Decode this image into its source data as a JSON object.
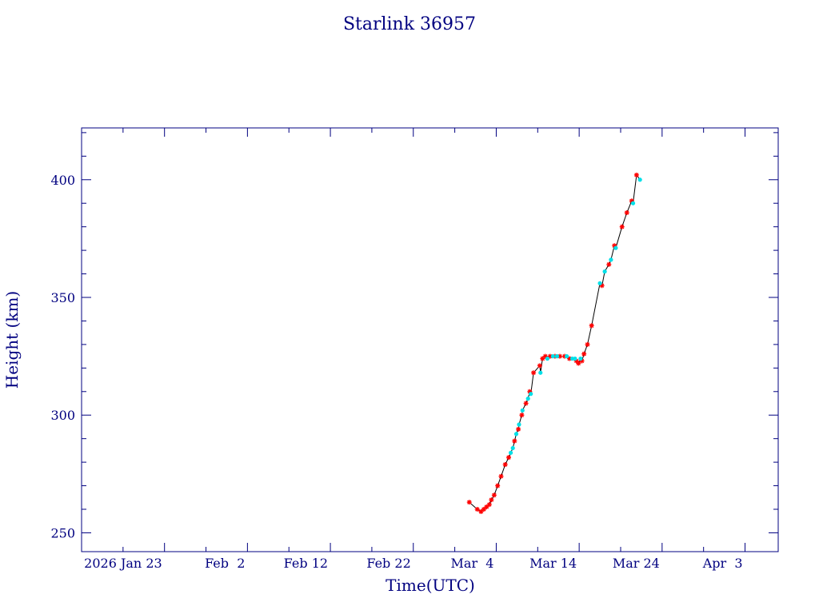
{
  "chart_data": {
    "type": "scatter",
    "title": "Starlink 36957",
    "xlabel": "Time(UTC)",
    "ylabel": "Height (km)",
    "x_ticks": [
      "2026 Jan 23",
      "Feb  2",
      "Feb 12",
      "Feb 22",
      "Mar  4",
      "Mar 14",
      "Mar 24",
      "Apr  3"
    ],
    "x_tick_dates": [
      "2026-01-23",
      "2026-02-02",
      "2026-02-12",
      "2026-02-22",
      "2026-03-04",
      "2026-03-14",
      "2026-03-24",
      "2026-04-03"
    ],
    "y_ticks": [
      250,
      300,
      350,
      400
    ],
    "xlim": [
      "2026-01-13",
      "2026-04-07"
    ],
    "ylim": [
      242,
      422
    ],
    "colors": {
      "frame": "#000080",
      "text": "#000080",
      "line": "#000000",
      "red_points": "#ff0000",
      "cyan_points": "#00e0e8"
    },
    "series": [
      {
        "color": "red",
        "marker": "star",
        "x": [
          "2026-02-28T18:00",
          "2026-03-01T17:00",
          "2026-03-02T04:00",
          "2026-03-02T12:00",
          "2026-03-02T20:00",
          "2026-03-03T04:00",
          "2026-03-03T10:00",
          "2026-03-03T18:00",
          "2026-03-04T04:00",
          "2026-03-04T14:00",
          "2026-03-05T02:00",
          "2026-03-05T12:00",
          "2026-03-06T05:00",
          "2026-03-06T16:00",
          "2026-03-07T02:00",
          "2026-03-07T14:00",
          "2026-03-08T01:00",
          "2026-03-08T12:00",
          "2026-03-09T06:00",
          "2026-03-09T14:00",
          "2026-03-09T22:00",
          "2026-03-10T12:00",
          "2026-03-11T02:00",
          "2026-03-11T16:00",
          "2026-03-12T06:00",
          "2026-03-12T20:00",
          "2026-03-13T16:00",
          "2026-03-13T22:00",
          "2026-03-14T08:00",
          "2026-03-14T14:00",
          "2026-03-15T00:00",
          "2026-03-15T12:00",
          "2026-03-16T18:00",
          "2026-03-17T14:00",
          "2026-03-18T06:00",
          "2026-03-19T04:00",
          "2026-03-19T18:00",
          "2026-03-20T08:00",
          "2026-03-20T22:00"
        ],
        "y": [
          263,
          260,
          259,
          260,
          261,
          262,
          264,
          266,
          270,
          274,
          279,
          282,
          289,
          294,
          300,
          305,
          310,
          318,
          321,
          324,
          325,
          325,
          325,
          325,
          325,
          324,
          323,
          322,
          323,
          326,
          330,
          338,
          355,
          364,
          372,
          380,
          386,
          391,
          402
        ]
      },
      {
        "color": "cyan",
        "marker": "dot",
        "x": [
          "2026-03-05T18:00",
          "2026-03-06T00:00",
          "2026-03-06T10:00",
          "2026-03-06T18:00",
          "2026-03-07T04:00",
          "2026-03-07T20:00",
          "2026-03-08T04:00",
          "2026-03-09T08:00",
          "2026-03-10T04:00",
          "2026-03-10T20:00",
          "2026-03-11T08:00",
          "2026-03-12T12:00",
          "2026-03-13T04:00",
          "2026-03-13T12:00",
          "2026-03-14T04:00",
          "2026-03-16T12:00",
          "2026-03-17T02:00",
          "2026-03-17T20:00",
          "2026-03-18T10:00",
          "2026-03-20T12:00",
          "2026-03-21T08:00"
        ],
        "y": [
          284,
          286,
          292,
          296,
          302,
          307,
          309,
          318,
          324,
          325,
          325,
          325,
          324,
          324,
          324,
          356,
          361,
          366,
          371,
          390,
          400
        ]
      }
    ]
  }
}
